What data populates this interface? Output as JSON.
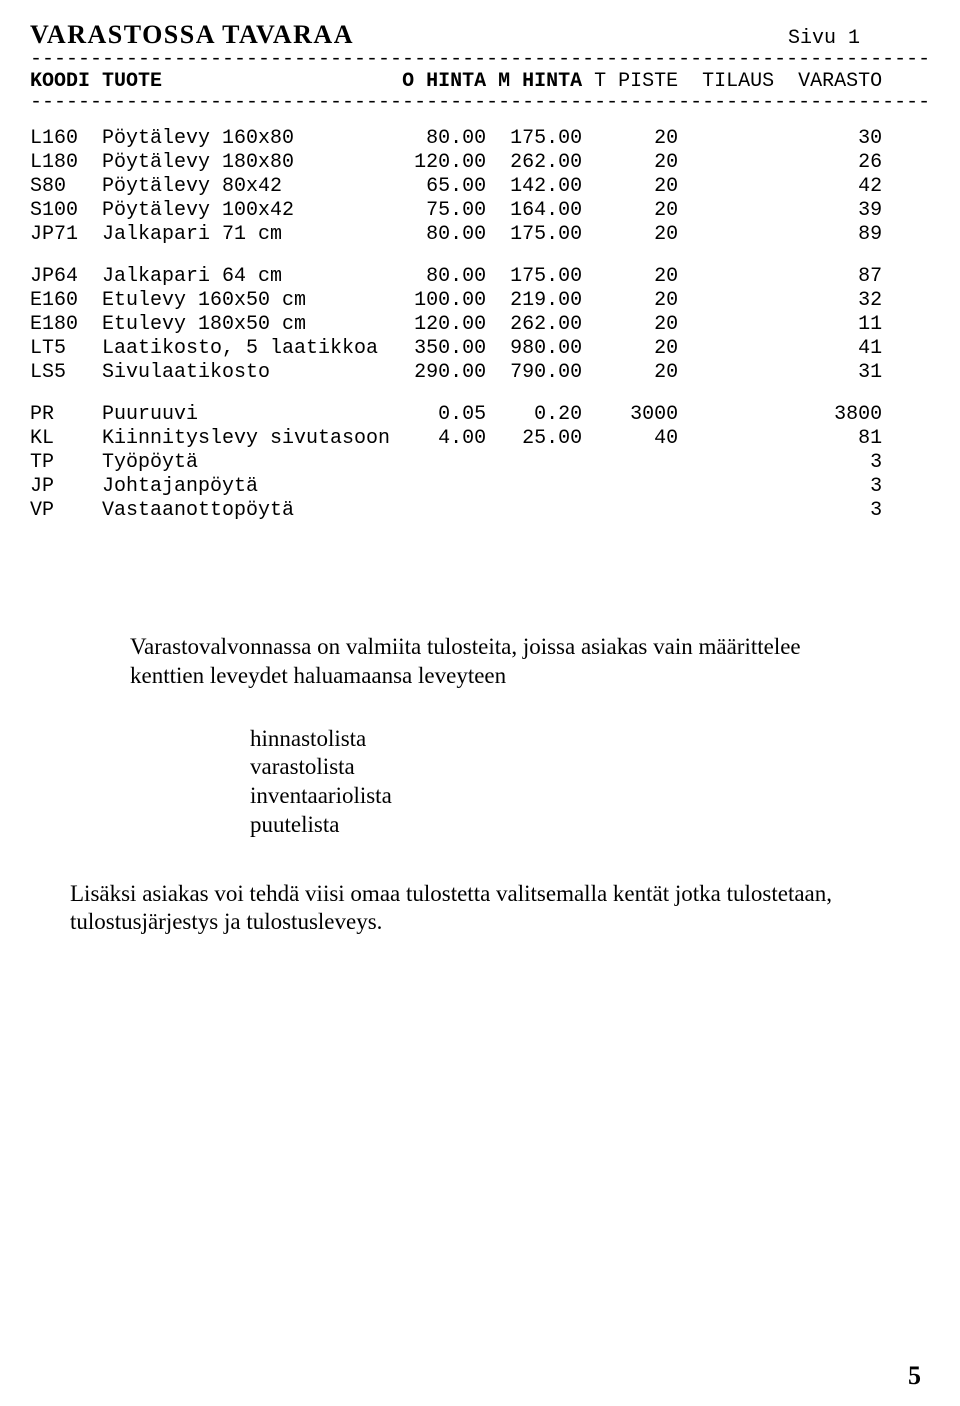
{
  "title": "VARASTOSSA TAVARAA",
  "page_label": "Sivu 1",
  "columns": {
    "c1": "KOODI",
    "c2": "TUOTE",
    "c3": "O HINTA",
    "c4": "M HINTA",
    "c5": "T PISTE",
    "c6": "TILAUS",
    "c7": "VARASTO"
  },
  "dash_line": "---------------------------------------------------------------------------",
  "rows_group1": [
    {
      "koodi": "L160",
      "tuote": "Pöytälevy 160x80",
      "ohinta": "80.00",
      "mhinta": "175.00",
      "tpiste": "20",
      "tilaus": "",
      "varasto": "30"
    },
    {
      "koodi": "L180",
      "tuote": "Pöytälevy 180x80",
      "ohinta": "120.00",
      "mhinta": "262.00",
      "tpiste": "20",
      "tilaus": "",
      "varasto": "26"
    },
    {
      "koodi": "S80",
      "tuote": "Pöytälevy 80x42",
      "ohinta": "65.00",
      "mhinta": "142.00",
      "tpiste": "20",
      "tilaus": "",
      "varasto": "42"
    },
    {
      "koodi": "S100",
      "tuote": "Pöytälevy 100x42",
      "ohinta": "75.00",
      "mhinta": "164.00",
      "tpiste": "20",
      "tilaus": "",
      "varasto": "39"
    },
    {
      "koodi": "JP71",
      "tuote": "Jalkapari 71 cm",
      "ohinta": "80.00",
      "mhinta": "175.00",
      "tpiste": "20",
      "tilaus": "",
      "varasto": "89"
    }
  ],
  "rows_group2": [
    {
      "koodi": "JP64",
      "tuote": "Jalkapari 64 cm",
      "ohinta": "80.00",
      "mhinta": "175.00",
      "tpiste": "20",
      "tilaus": "",
      "varasto": "87"
    },
    {
      "koodi": "E160",
      "tuote": "Etulevy 160x50 cm",
      "ohinta": "100.00",
      "mhinta": "219.00",
      "tpiste": "20",
      "tilaus": "",
      "varasto": "32"
    },
    {
      "koodi": "E180",
      "tuote": "Etulevy 180x50 cm",
      "ohinta": "120.00",
      "mhinta": "262.00",
      "tpiste": "20",
      "tilaus": "",
      "varasto": "11"
    },
    {
      "koodi": "LT5",
      "tuote": "Laatikosto, 5 laatikkoa",
      "ohinta": "350.00",
      "mhinta": "980.00",
      "tpiste": "20",
      "tilaus": "",
      "varasto": "41"
    },
    {
      "koodi": "LS5",
      "tuote": "Sivulaatikosto",
      "ohinta": "290.00",
      "mhinta": "790.00",
      "tpiste": "20",
      "tilaus": "",
      "varasto": "31"
    }
  ],
  "rows_group3": [
    {
      "koodi": "PR",
      "tuote": "Puuruuvi",
      "ohinta": "0.05",
      "mhinta": "0.20",
      "tpiste": "3000",
      "tilaus": "",
      "varasto": "3800"
    },
    {
      "koodi": "KL",
      "tuote": "Kiinnityslevy sivutasoon",
      "ohinta": "4.00",
      "mhinta": "25.00",
      "tpiste": "40",
      "tilaus": "",
      "varasto": "81"
    },
    {
      "koodi": "TP",
      "tuote": "Työpöytä",
      "ohinta": "",
      "mhinta": "",
      "tpiste": "",
      "tilaus": "",
      "varasto": "3"
    },
    {
      "koodi": "JP",
      "tuote": "Johtajanpöytä",
      "ohinta": "",
      "mhinta": "",
      "tpiste": "",
      "tilaus": "",
      "varasto": "3"
    },
    {
      "koodi": "VP",
      "tuote": "Vastaanottopöytä",
      "ohinta": "",
      "mhinta": "",
      "tpiste": "",
      "tilaus": "",
      "varasto": "3"
    }
  ],
  "paragraph1": "Varastovalvonnassa on valmiita tulosteita, joissa asiakas vain määrittelee kenttien leveydet haluamaansa leveyteen",
  "list_items": [
    "hinnastolista",
    "varastolista",
    "inventaariolista",
    "puutelista"
  ],
  "paragraph3": "Lisäksi asiakas voi tehdä viisi omaa tulostetta valitsemalla kentät jotka tulostetaan, tulostusjärjestys ja tulostusleveys.",
  "page_number": "5",
  "col_widths": {
    "koodi": 6,
    "tuote": 25,
    "ohinta": 7,
    "mhinta": 8,
    "tpiste": 8,
    "tilaus": 8,
    "varasto": 9
  }
}
